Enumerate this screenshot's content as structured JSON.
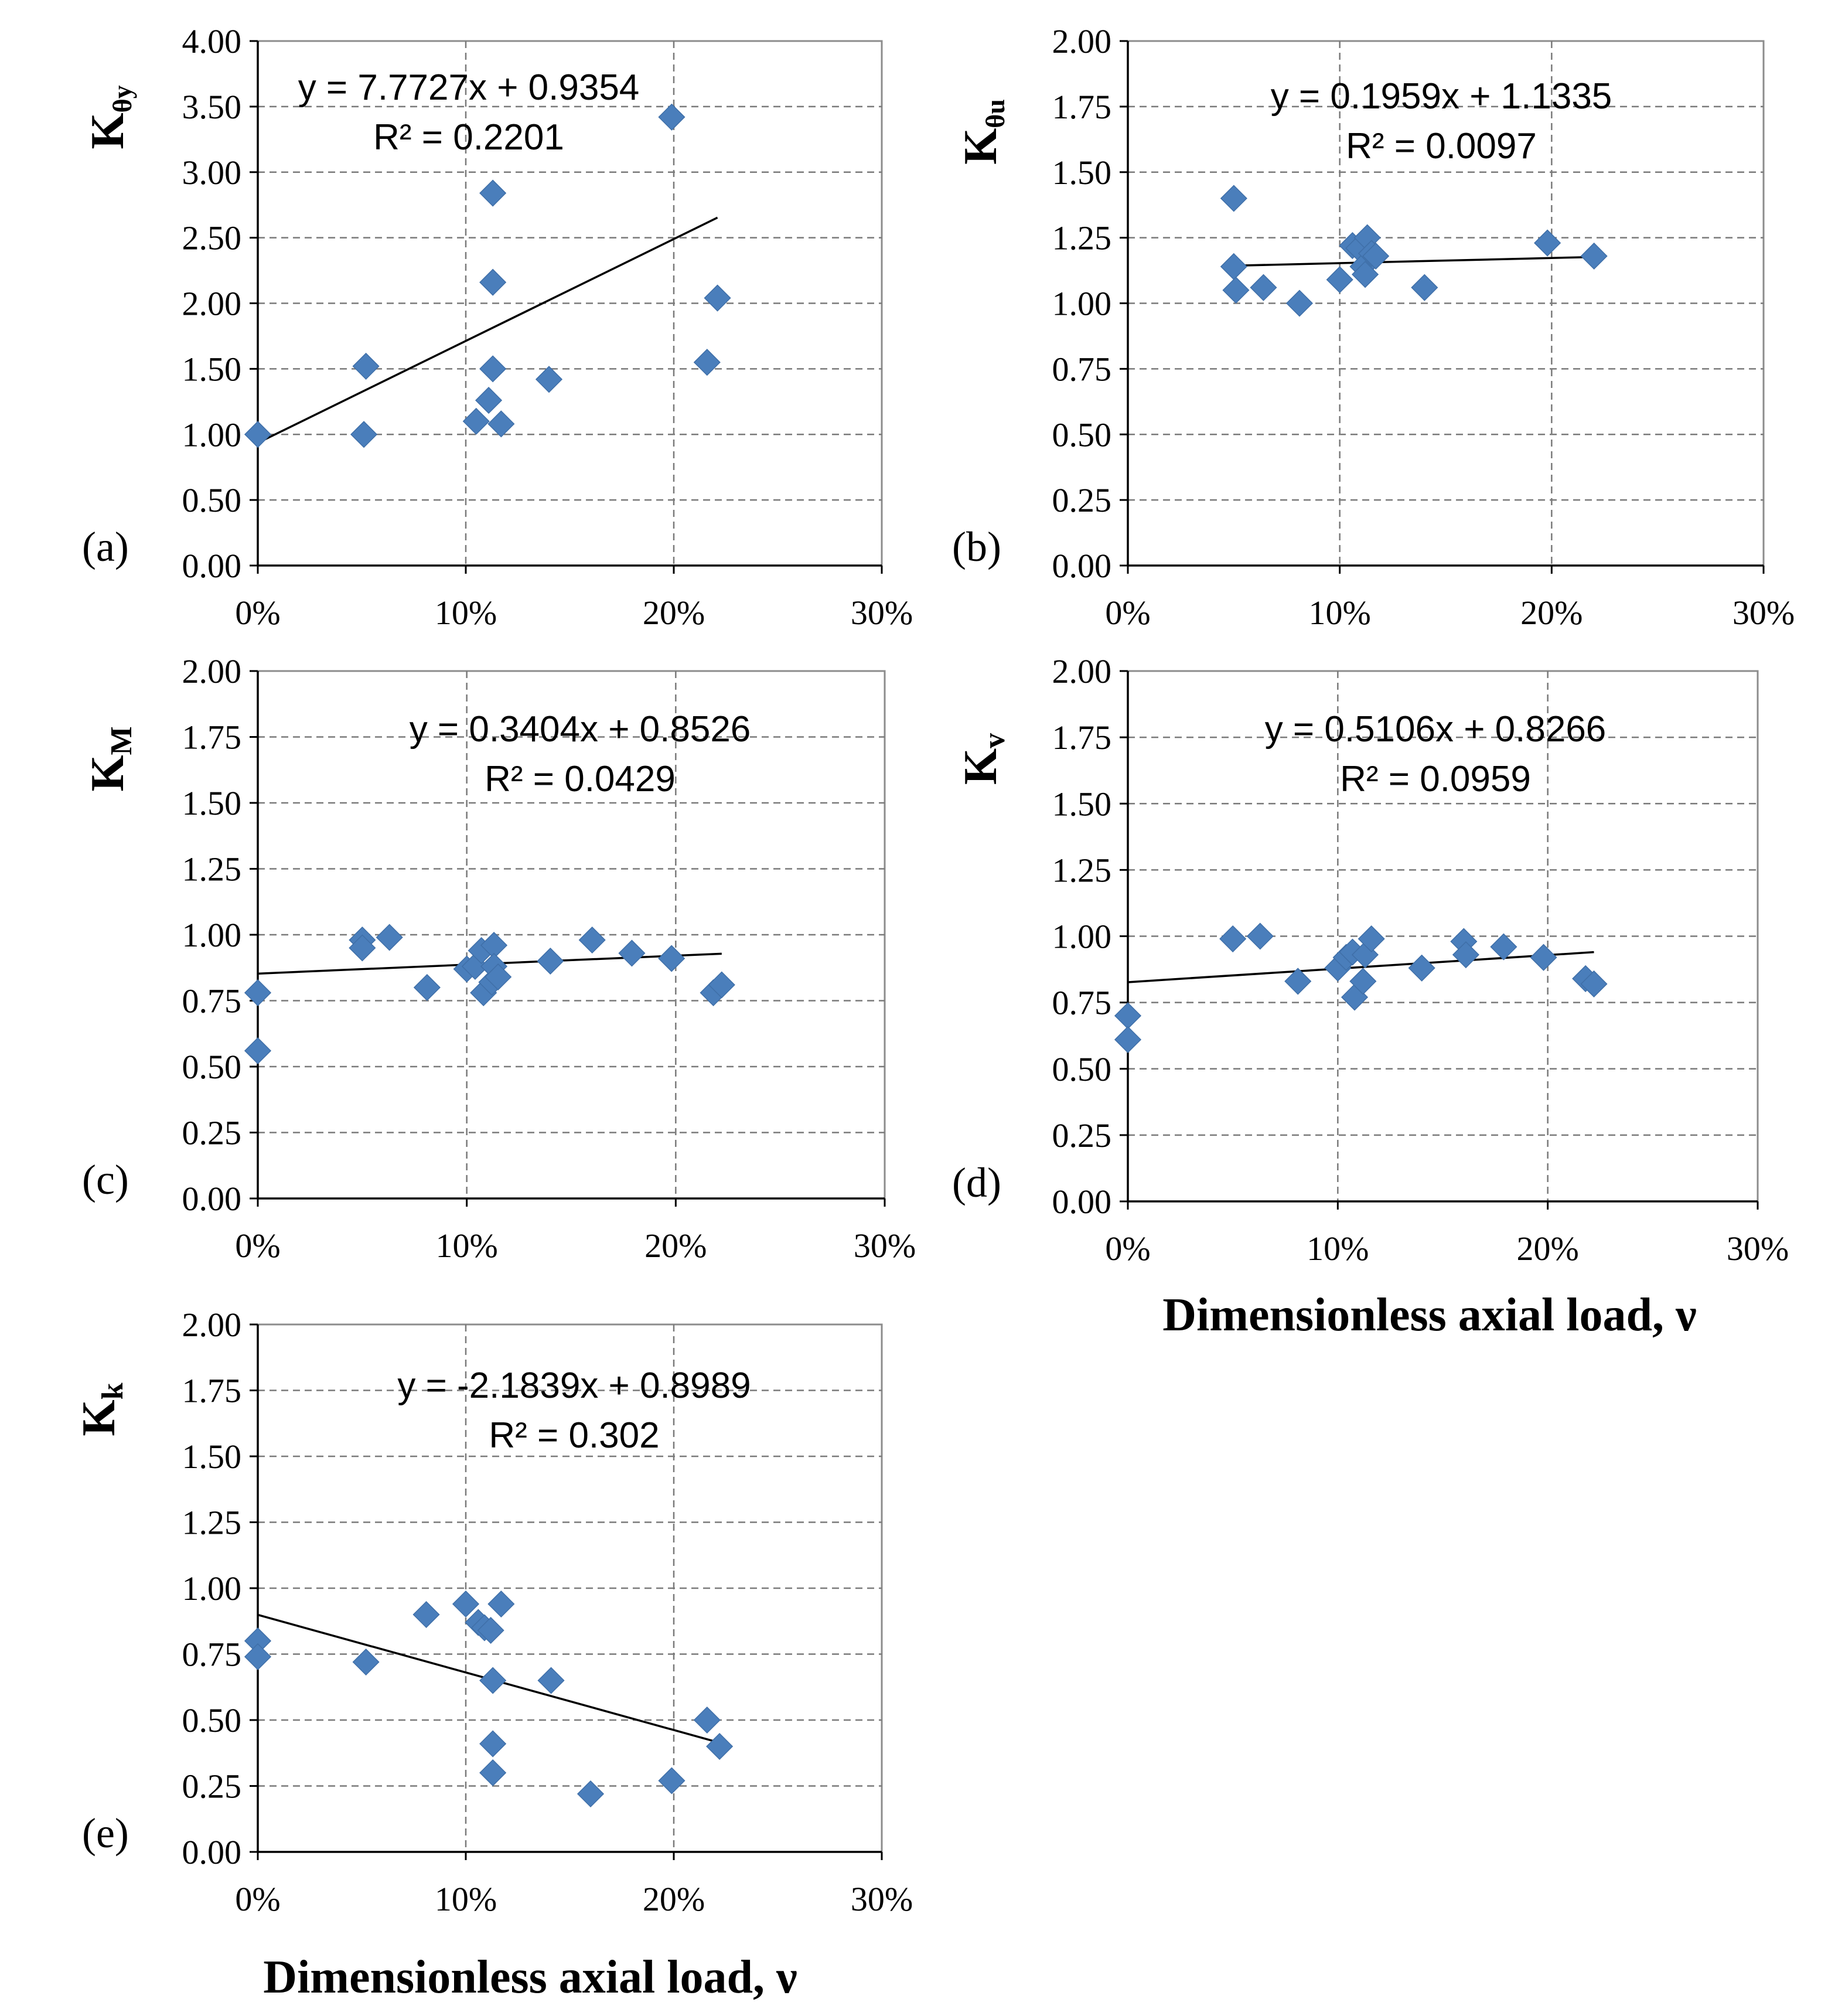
{
  "figure": {
    "xlabel": "Dimensionless axial load, ν"
  },
  "chart_data": [
    {
      "panel": "(a)",
      "type": "scatter",
      "ylabel_main": "K",
      "ylabel_sub": "θy",
      "equation": "y = 7.7727x + 0.9354",
      "r_squared": "R² = 0.2201",
      "xlim": [
        0,
        0.3
      ],
      "ylim": [
        0,
        4
      ],
      "x_ticks": [
        "0%",
        "10%",
        "20%",
        "30%"
      ],
      "y_ticks": [
        "0.00",
        "0.50",
        "1.00",
        "1.50",
        "2.00",
        "2.50",
        "3.00",
        "3.50",
        "4.00"
      ],
      "trendline": {
        "slope": 7.7727,
        "intercept": 0.9354,
        "x_range": [
          0,
          0.221
        ]
      },
      "points": [
        [
          0.0,
          1.0
        ],
        [
          0.052,
          1.52
        ],
        [
          0.051,
          1.0
        ],
        [
          0.105,
          1.1
        ],
        [
          0.111,
          1.26
        ],
        [
          0.113,
          1.5
        ],
        [
          0.113,
          2.16
        ],
        [
          0.113,
          2.84
        ],
        [
          0.117,
          1.08
        ],
        [
          0.14,
          1.42
        ],
        [
          0.199,
          3.42
        ],
        [
          0.216,
          1.55
        ],
        [
          0.221,
          2.04
        ]
      ]
    },
    {
      "panel": "(b)",
      "type": "scatter",
      "ylabel_main": "K",
      "ylabel_sub": "θu",
      "equation": "y = 0.1959x + 1.1335",
      "r_squared": "R² = 0.0097",
      "xlim": [
        0,
        0.3
      ],
      "ylim": [
        0,
        2
      ],
      "x_ticks": [
        "0%",
        "10%",
        "20%",
        "30%"
      ],
      "y_ticks": [
        "0.00",
        "0.25",
        "0.50",
        "0.75",
        "1.00",
        "1.25",
        "1.50",
        "1.75",
        "2.00"
      ],
      "trendline": {
        "slope": 0.1959,
        "intercept": 1.1335,
        "x_range": [
          0.05,
          0.22
        ]
      },
      "points": [
        [
          0.05,
          1.4
        ],
        [
          0.05,
          1.14
        ],
        [
          0.051,
          1.05
        ],
        [
          0.064,
          1.06
        ],
        [
          0.081,
          1.0
        ],
        [
          0.1,
          1.09
        ],
        [
          0.106,
          1.22
        ],
        [
          0.109,
          1.21
        ],
        [
          0.111,
          1.14
        ],
        [
          0.112,
          1.11
        ],
        [
          0.113,
          1.25
        ],
        [
          0.115,
          1.19
        ],
        [
          0.117,
          1.18
        ],
        [
          0.14,
          1.06
        ],
        [
          0.198,
          1.23
        ],
        [
          0.22,
          1.18
        ]
      ]
    },
    {
      "panel": "(c)",
      "type": "scatter",
      "ylabel_main": "K",
      "ylabel_sub": "M",
      "equation": "y = 0.3404x + 0.8526",
      "r_squared": "R² = 0.0429",
      "xlim": [
        0,
        0.3
      ],
      "ylim": [
        0,
        2
      ],
      "x_ticks": [
        "0%",
        "10%",
        "20%",
        "30%"
      ],
      "y_ticks": [
        "0.00",
        "0.25",
        "0.50",
        "0.75",
        "1.00",
        "1.25",
        "1.50",
        "1.75",
        "2.00"
      ],
      "trendline": {
        "slope": 0.3404,
        "intercept": 0.8526,
        "x_range": [
          0,
          0.222
        ]
      },
      "points": [
        [
          0.0,
          0.78
        ],
        [
          0.0,
          0.56
        ],
        [
          0.05,
          0.98
        ],
        [
          0.05,
          0.95
        ],
        [
          0.063,
          0.99
        ],
        [
          0.081,
          0.8
        ],
        [
          0.1,
          0.87
        ],
        [
          0.104,
          0.88
        ],
        [
          0.107,
          0.94
        ],
        [
          0.108,
          0.78
        ],
        [
          0.112,
          0.82
        ],
        [
          0.113,
          0.96
        ],
        [
          0.113,
          0.88
        ],
        [
          0.115,
          0.84
        ],
        [
          0.14,
          0.9
        ],
        [
          0.16,
          0.98
        ],
        [
          0.179,
          0.93
        ],
        [
          0.198,
          0.91
        ],
        [
          0.218,
          0.78
        ],
        [
          0.222,
          0.81
        ]
      ]
    },
    {
      "panel": "(d)",
      "type": "scatter",
      "ylabel_main": "K",
      "ylabel_sub": "v",
      "equation": "y = 0.5106x + 0.8266",
      "r_squared": "R² = 0.0959",
      "xlim": [
        0,
        0.3
      ],
      "ylim": [
        0,
        2
      ],
      "x_ticks": [
        "0%",
        "10%",
        "20%",
        "30%"
      ],
      "y_ticks": [
        "0.00",
        "0.25",
        "0.50",
        "0.75",
        "1.00",
        "1.25",
        "1.50",
        "1.75",
        "2.00"
      ],
      "trendline": {
        "slope": 0.5106,
        "intercept": 0.8266,
        "x_range": [
          0,
          0.222
        ]
      },
      "points": [
        [
          0.0,
          0.7
        ],
        [
          0.0,
          0.61
        ],
        [
          0.05,
          0.99
        ],
        [
          0.063,
          1.0
        ],
        [
          0.081,
          0.83
        ],
        [
          0.1,
          0.88
        ],
        [
          0.104,
          0.92
        ],
        [
          0.107,
          0.94
        ],
        [
          0.108,
          0.77
        ],
        [
          0.112,
          0.83
        ],
        [
          0.113,
          0.93
        ],
        [
          0.116,
          0.99
        ],
        [
          0.14,
          0.88
        ],
        [
          0.16,
          0.98
        ],
        [
          0.161,
          0.93
        ],
        [
          0.179,
          0.96
        ],
        [
          0.198,
          0.92
        ],
        [
          0.218,
          0.84
        ],
        [
          0.222,
          0.82
        ]
      ]
    },
    {
      "panel": "(e)",
      "type": "scatter",
      "ylabel_main": "K",
      "ylabel_sub": "k",
      "equation": "y = -2.1839x  + 0.8989",
      "r_squared": "R² = 0.302",
      "xlim": [
        0,
        0.3
      ],
      "ylim": [
        0,
        2
      ],
      "x_ticks": [
        "0%",
        "10%",
        "20%",
        "30%"
      ],
      "y_ticks": [
        "0.00",
        "0.25",
        "0.50",
        "0.75",
        "1.00",
        "1.25",
        "1.50",
        "1.75",
        "2.00"
      ],
      "trendline": {
        "slope": -2.1839,
        "intercept": 0.8989,
        "x_range": [
          0,
          0.222
        ]
      },
      "points": [
        [
          0.0,
          0.8
        ],
        [
          0.0,
          0.74
        ],
        [
          0.052,
          0.72
        ],
        [
          0.081,
          0.9
        ],
        [
          0.1,
          0.94
        ],
        [
          0.106,
          0.87
        ],
        [
          0.109,
          0.85
        ],
        [
          0.112,
          0.84
        ],
        [
          0.113,
          0.65
        ],
        [
          0.113,
          0.41
        ],
        [
          0.113,
          0.3
        ],
        [
          0.117,
          0.94
        ],
        [
          0.141,
          0.65
        ],
        [
          0.16,
          0.22
        ],
        [
          0.199,
          0.27
        ],
        [
          0.216,
          0.5
        ],
        [
          0.222,
          0.4
        ]
      ]
    }
  ]
}
